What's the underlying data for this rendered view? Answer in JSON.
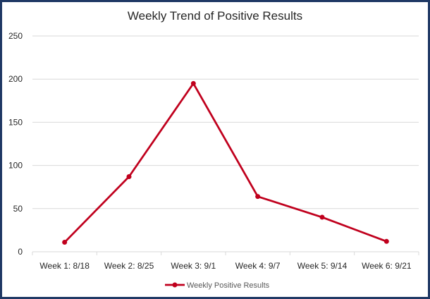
{
  "chart_data": {
    "type": "line",
    "title": "Weekly Trend of Positive Results",
    "xlabel": "",
    "ylabel": "",
    "categories": [
      "Week 1: 8/18",
      "Week 2: 8/25",
      "Week 3: 9/1",
      "Week 4: 9/7",
      "Week 5: 9/14",
      "Week 6: 9/21"
    ],
    "series": [
      {
        "name": "Weekly Positive Results",
        "values": [
          11,
          87,
          195,
          64,
          40,
          12
        ],
        "color": "#c0001d"
      }
    ],
    "ylim": [
      0,
      250
    ],
    "yticks": [
      0,
      50,
      100,
      150,
      200,
      250
    ],
    "grid": true,
    "legend": "bottom",
    "colors": {
      "frame": "#1f3864",
      "grid": "#d9d9d9",
      "text": "#262626"
    }
  }
}
